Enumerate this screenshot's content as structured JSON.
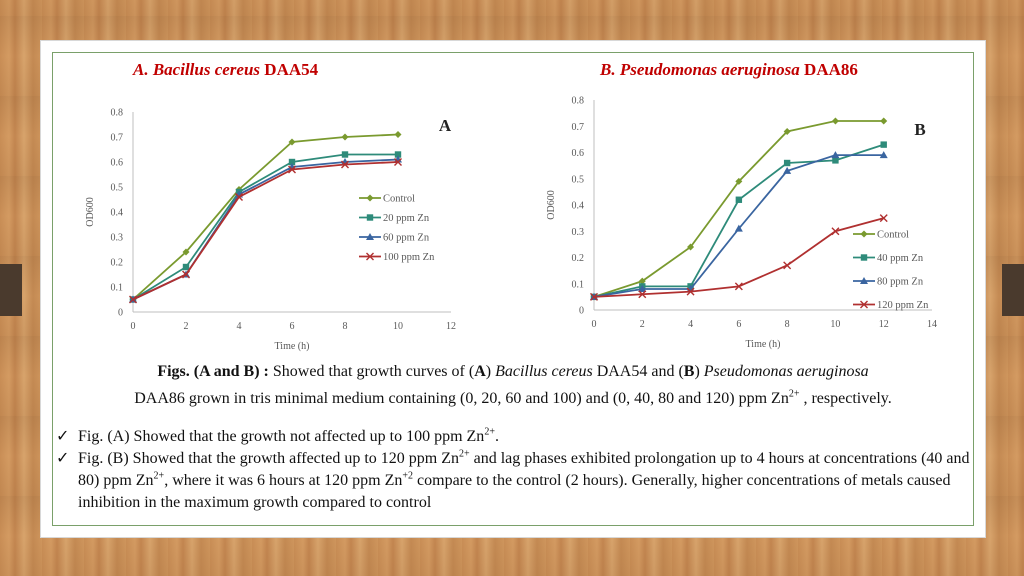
{
  "chart_data": [
    {
      "type": "line",
      "title_italic": "A. Bacillus cereus",
      "title_plain": "DAA54",
      "panel_letter": "A",
      "xlabel": "Time (h)",
      "ylabel": "OD600",
      "xlim": [
        0,
        12
      ],
      "ylim": [
        0,
        0.8
      ],
      "xticks": [
        0,
        2,
        4,
        6,
        8,
        10,
        12
      ],
      "yticks": [
        0,
        0.1,
        0.2,
        0.3,
        0.4,
        0.5,
        0.6,
        0.7,
        0.8
      ],
      "grid": false,
      "legend_position": "center-right",
      "x": [
        0,
        2,
        4,
        6,
        8,
        10
      ],
      "series": [
        {
          "name": "Control",
          "color": "#7a9a2f",
          "marker": "diamond",
          "values": [
            0.05,
            0.24,
            0.49,
            0.68,
            0.7,
            0.71
          ]
        },
        {
          "name": "20 ppm Zn",
          "color": "#2e8b7a",
          "marker": "square",
          "values": [
            0.05,
            0.18,
            0.48,
            0.6,
            0.63,
            0.63
          ]
        },
        {
          "name": "60 ppm Zn",
          "color": "#3a65a0",
          "marker": "triangle",
          "values": [
            0.05,
            0.15,
            0.47,
            0.58,
            0.6,
            0.61
          ]
        },
        {
          "name": "100 ppm Zn",
          "color": "#b03030",
          "marker": "x",
          "values": [
            0.05,
            0.15,
            0.46,
            0.57,
            0.59,
            0.6
          ]
        }
      ]
    },
    {
      "type": "line",
      "title_italic": "B. Pseudomonas aeruginosa",
      "title_plain": "DAA86",
      "panel_letter": "B",
      "xlabel": "Time (h)",
      "ylabel": "OD600",
      "xlim": [
        0,
        14
      ],
      "ylim": [
        0,
        0.8
      ],
      "xticks": [
        0,
        2,
        4,
        6,
        8,
        10,
        12,
        14
      ],
      "yticks": [
        0,
        0.1,
        0.2,
        0.3,
        0.4,
        0.5,
        0.6,
        0.7,
        0.8
      ],
      "grid": false,
      "legend_position": "bottom-right",
      "x": [
        0,
        2,
        4,
        6,
        8,
        10,
        12
      ],
      "series": [
        {
          "name": "Control",
          "color": "#7a9a2f",
          "marker": "diamond",
          "values": [
            0.05,
            0.11,
            0.24,
            0.49,
            0.68,
            0.72,
            0.72
          ]
        },
        {
          "name": "40 ppm Zn",
          "color": "#2e8b7a",
          "marker": "square",
          "values": [
            0.05,
            0.09,
            0.09,
            0.42,
            0.56,
            0.57,
            0.63
          ]
        },
        {
          "name": "80 ppm Zn",
          "color": "#3a65a0",
          "marker": "triangle",
          "values": [
            0.05,
            0.08,
            0.08,
            0.31,
            0.53,
            0.59,
            0.59
          ]
        },
        {
          "name": "120 ppm Zn",
          "color": "#b03030",
          "marker": "x",
          "values": [
            0.05,
            0.06,
            0.07,
            0.09,
            0.17,
            0.3,
            0.35
          ]
        }
      ]
    }
  ],
  "caption": {
    "lead_bold": "Figs. (A and B) :",
    "t1": " Showed that growth curves of (",
    "a_bold": "A",
    "t2": ") ",
    "a_italic": "Bacillus cereus",
    "t3": " DAA54 and (",
    "b_bold": "B",
    "t4": ") ",
    "b_italic": "Pseudomonas aeruginosa",
    "line2a": "DAA86 grown in tris minimal medium containing (0, 20, 60 and 100) and (0, 40, 80 and 120) ppm Zn",
    "sup": "2+",
    "line2b": " , respectively."
  },
  "bullets": {
    "check": "✓",
    "b1a": "Fig. (A) Showed that the growth not affected up to 100 ppm Zn",
    "b1sup": "2+",
    "b1b": ".",
    "b2a": "Fig. (B) Showed that the growth affected up to 120 ppm Zn",
    "b2sup1": "2+",
    "b2b": " and lag phases exhibited prolongation up to 4 hours at concentrations (40 and 80) ppm Zn",
    "b2sup2": "2+",
    "b2c": ", where it was 6 hours at 120 ppm Zn",
    "b2sup3": "+2",
    "b2d": " compare to the control (2 hours). Generally, higher concentrations of metals caused inhibition in the maximum growth compared to control"
  }
}
